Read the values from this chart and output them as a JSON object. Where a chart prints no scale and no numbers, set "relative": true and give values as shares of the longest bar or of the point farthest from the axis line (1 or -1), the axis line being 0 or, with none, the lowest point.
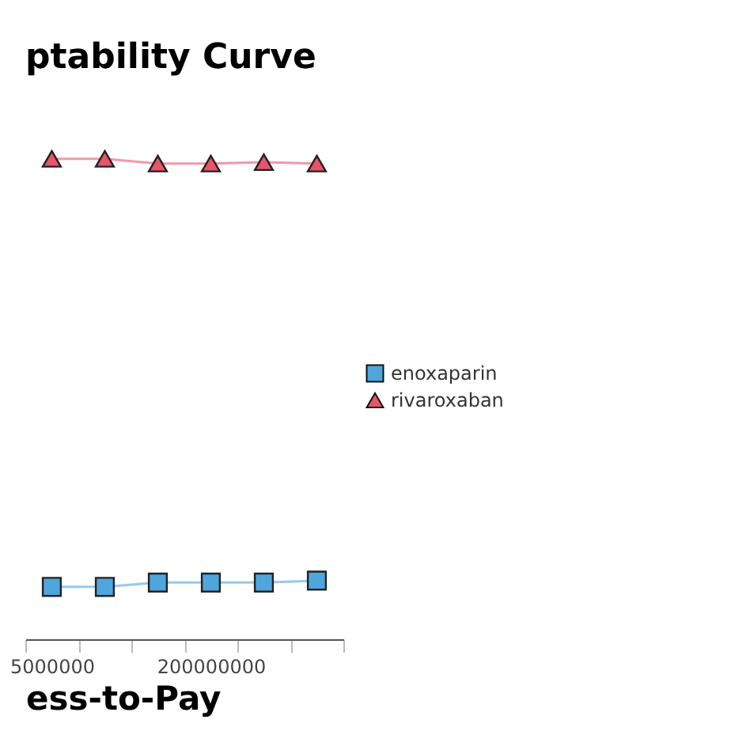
{
  "chart_data": {
    "type": "line",
    "title": "ptability Curve",
    "xlabel": "ess-to-Pay",
    "relative": true,
    "legend": "right",
    "grid": false,
    "categories": [
      "5000000",
      null,
      null,
      "200000000",
      null,
      null
    ],
    "series": [
      {
        "name": "enoxaparin",
        "color": "#4ea6dc",
        "marker": "square",
        "values": [
          0.109,
          0.109,
          0.118,
          0.118,
          0.118,
          0.122
        ]
      },
      {
        "name": "rivaroxaban",
        "color": "#e8556a",
        "marker": "triangle",
        "values": [
          1,
          1,
          0.99,
          0.99,
          0.993,
          0.99
        ]
      }
    ]
  }
}
